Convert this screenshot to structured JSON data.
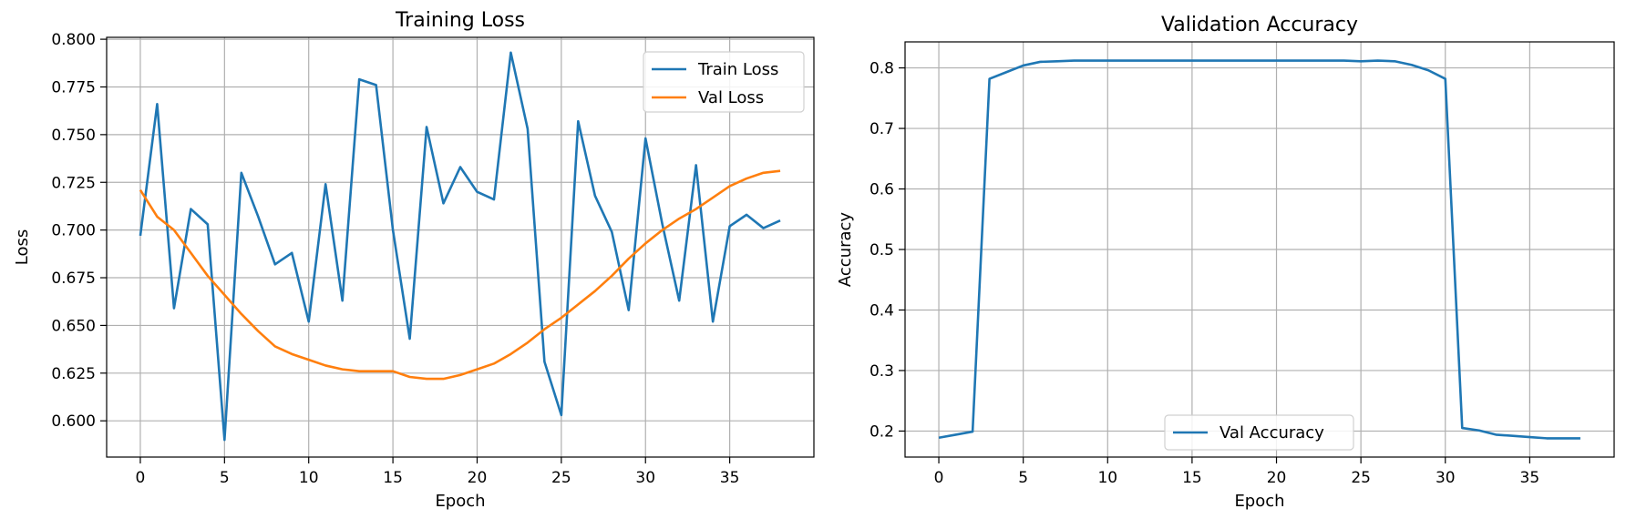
{
  "chart_data": [
    {
      "type": "line",
      "title": "Training Loss",
      "xlabel": "Epoch",
      "ylabel": "Loss",
      "xlim": [
        -2,
        40
      ],
      "ylim": [
        0.581,
        0.801
      ],
      "xticks": [
        0,
        5,
        10,
        15,
        20,
        25,
        30,
        35
      ],
      "yticks": [
        0.6,
        0.625,
        0.65,
        0.675,
        0.7,
        0.725,
        0.75,
        0.775,
        0.8
      ],
      "ytick_labels": [
        "0.600",
        "0.625",
        "0.650",
        "0.675",
        "0.700",
        "0.725",
        "0.750",
        "0.775",
        "0.800"
      ],
      "grid": true,
      "legend_position": "top-right",
      "x": [
        0,
        1,
        2,
        3,
        4,
        5,
        6,
        7,
        8,
        9,
        10,
        11,
        12,
        13,
        14,
        15,
        16,
        17,
        18,
        19,
        20,
        21,
        22,
        23,
        24,
        25,
        26,
        27,
        28,
        29,
        30,
        31,
        32,
        33,
        34,
        35,
        36,
        37,
        38
      ],
      "series": [
        {
          "name": "Train Loss",
          "color": "#1f77b4",
          "values": [
            0.697,
            0.766,
            0.659,
            0.711,
            0.703,
            0.59,
            0.73,
            0.707,
            0.682,
            0.688,
            0.652,
            0.724,
            0.663,
            0.779,
            0.776,
            0.7,
            0.643,
            0.754,
            0.714,
            0.733,
            0.72,
            0.716,
            0.793,
            0.753,
            0.631,
            0.603,
            0.757,
            0.718,
            0.699,
            0.658,
            0.748,
            0.703,
            0.663,
            0.734,
            0.652,
            0.702,
            0.708,
            0.701,
            0.705
          ]
        },
        {
          "name": "Val Loss",
          "color": "#ff7f0e",
          "values": [
            0.721,
            0.707,
            0.7,
            0.688,
            0.676,
            0.666,
            0.656,
            0.647,
            0.639,
            0.635,
            0.632,
            0.629,
            0.627,
            0.626,
            0.626,
            0.626,
            0.623,
            0.622,
            0.622,
            0.624,
            0.627,
            0.63,
            0.635,
            0.641,
            0.648,
            0.654,
            0.661,
            0.668,
            0.676,
            0.685,
            0.693,
            0.7,
            0.706,
            0.711,
            0.717,
            0.723,
            0.727,
            0.73,
            0.731
          ]
        }
      ]
    },
    {
      "type": "line",
      "title": "Validation Accuracy",
      "xlabel": "Epoch",
      "ylabel": "Accuracy",
      "xlim": [
        -2,
        40
      ],
      "ylim": [
        0.157,
        0.843
      ],
      "xticks": [
        0,
        5,
        10,
        15,
        20,
        25,
        30,
        35
      ],
      "yticks": [
        0.2,
        0.3,
        0.4,
        0.5,
        0.6,
        0.7,
        0.8
      ],
      "ytick_labels": [
        "0.2",
        "0.3",
        "0.4",
        "0.5",
        "0.6",
        "0.7",
        "0.8"
      ],
      "grid": true,
      "legend_position": "bottom-center",
      "x": [
        0,
        1,
        2,
        3,
        4,
        5,
        6,
        7,
        8,
        9,
        10,
        11,
        12,
        13,
        14,
        15,
        16,
        17,
        18,
        19,
        20,
        21,
        22,
        23,
        24,
        25,
        26,
        27,
        28,
        29,
        30,
        31,
        32,
        33,
        34,
        35,
        36,
        37,
        38
      ],
      "series": [
        {
          "name": "Val Accuracy",
          "color": "#1f77b4",
          "values": [
            0.189,
            0.194,
            0.199,
            0.782,
            0.793,
            0.804,
            0.81,
            0.811,
            0.812,
            0.812,
            0.812,
            0.812,
            0.812,
            0.812,
            0.812,
            0.812,
            0.812,
            0.812,
            0.812,
            0.812,
            0.812,
            0.812,
            0.812,
            0.812,
            0.812,
            0.811,
            0.812,
            0.811,
            0.805,
            0.796,
            0.782,
            0.205,
            0.201,
            0.194,
            0.192,
            0.19,
            0.188,
            0.188,
            0.188
          ]
        }
      ]
    }
  ]
}
